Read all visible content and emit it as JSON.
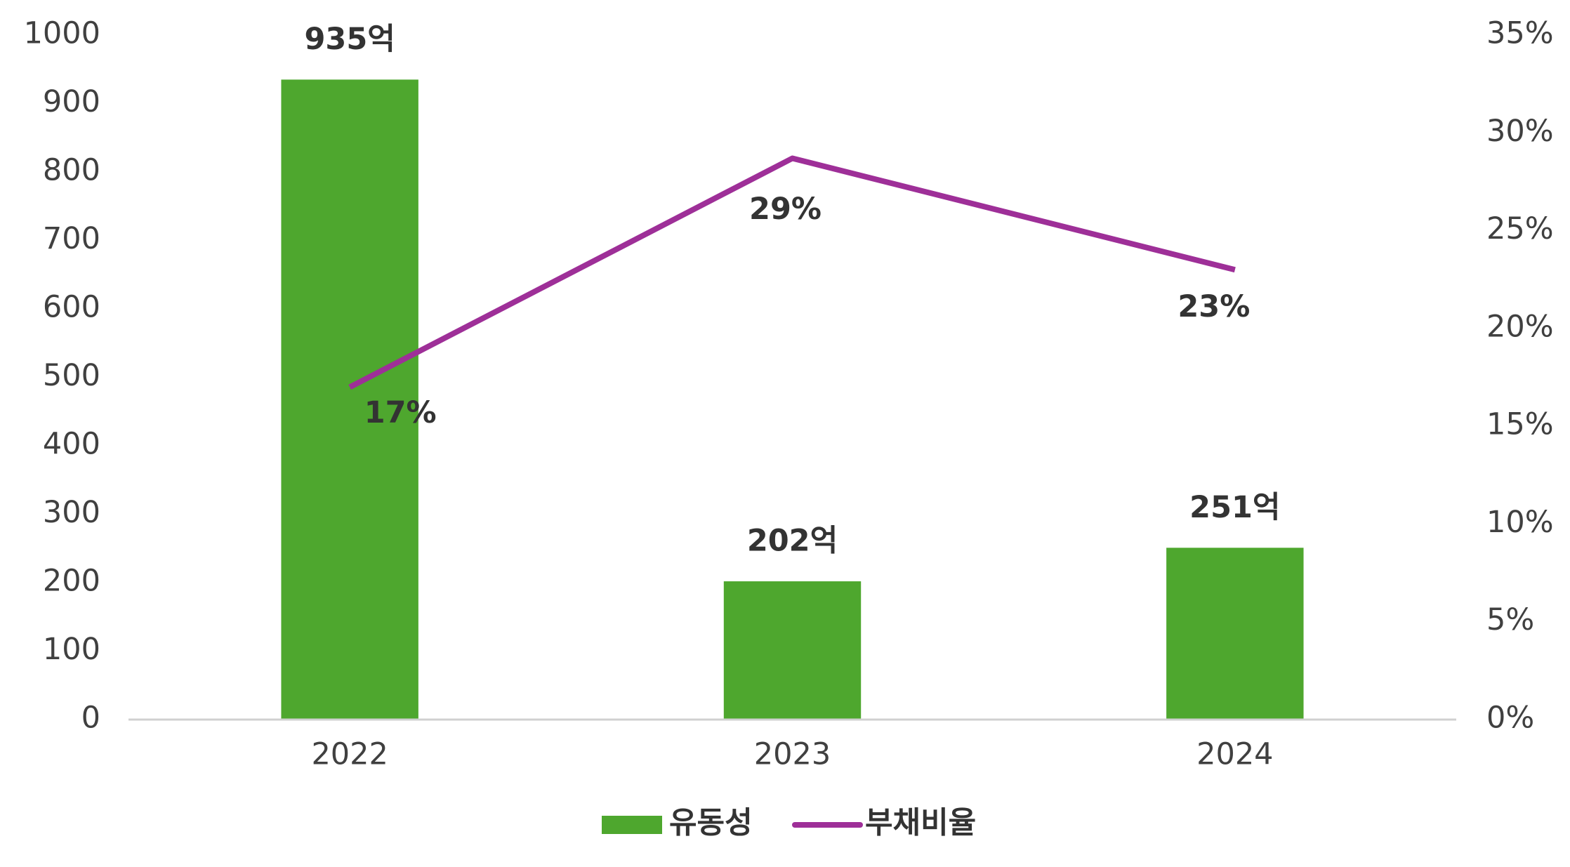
{
  "chart_data": {
    "type": "bar-line",
    "categories": [
      "2022",
      "2023",
      "2024"
    ],
    "series": [
      {
        "name": "유동성",
        "type": "bar",
        "color": "#4ea72e",
        "values": [
          935,
          202,
          251
        ],
        "value_labels": [
          "935억",
          "202억",
          "251억"
        ]
      },
      {
        "name": "부채비율",
        "type": "line",
        "axis": "y2",
        "color": "#9e2f98",
        "values": [
          17,
          28.7,
          23
        ],
        "value_labels": [
          "17%",
          "29%",
          "23%"
        ]
      }
    ],
    "ylim": [
      0,
      1000
    ],
    "yticks": [
      0,
      100,
      200,
      300,
      400,
      500,
      600,
      700,
      800,
      900,
      1000
    ],
    "y2lim": [
      0,
      35
    ],
    "y2ticks": [
      {
        "value": 0,
        "label": "0%"
      },
      {
        "value": 5,
        "label": "5%"
      },
      {
        "value": 10,
        "label": "10%"
      },
      {
        "value": 15,
        "label": "15%"
      },
      {
        "value": 20,
        "label": "20%"
      },
      {
        "value": 25,
        "label": "25%"
      },
      {
        "value": 30,
        "label": "30%"
      },
      {
        "value": 35,
        "label": "35%"
      }
    ],
    "grid": false,
    "legend": "bottom"
  }
}
